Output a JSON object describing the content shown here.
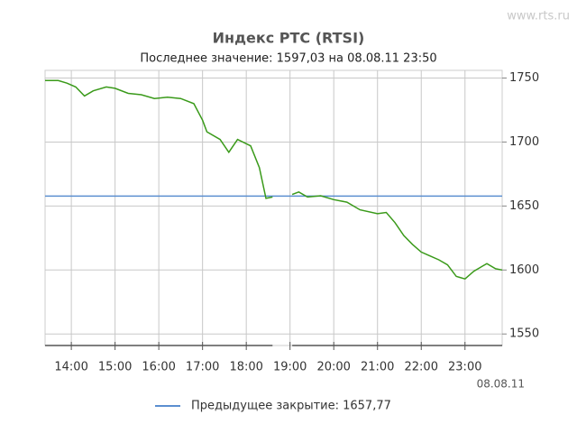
{
  "chart_data": {
    "type": "line",
    "watermark": "www.rts.ru",
    "title": "Индекс РТС (RTSI)",
    "subtitle": "Последнее значение: 1597,03 на 08.08.11 23:50",
    "date_label": "08.08.11",
    "x": [
      13.4,
      13.7,
      13.9,
      14.1,
      14.3,
      14.5,
      14.8,
      15.0,
      15.3,
      15.6,
      15.9,
      16.2,
      16.5,
      16.8,
      17.0,
      17.1,
      17.4,
      17.6,
      17.8,
      18.1,
      18.3,
      18.45,
      18.6,
      18.8,
      19.05,
      19.2,
      19.4,
      19.7,
      20.0,
      20.3,
      20.6,
      21.0,
      21.2,
      21.4,
      21.6,
      21.8,
      22.0,
      22.2,
      22.4,
      22.6,
      22.8,
      23.0,
      23.2,
      23.4,
      23.5,
      23.7,
      23.85
    ],
    "series": [
      {
        "color": "#3a9a1a",
        "values": [
          1748,
          1748,
          1746,
          1743,
          1736,
          1740,
          1743,
          1742,
          1738,
          1737,
          1734,
          1735,
          1734,
          1730,
          1717,
          1708,
          1702,
          1692,
          1702,
          1697,
          1680,
          1656,
          1657,
          null,
          1659,
          1661,
          1657,
          1658,
          1655,
          1653,
          1647,
          1644,
          1645,
          1637,
          1627,
          1620,
          1614,
          1611,
          1608,
          1604,
          1595,
          1593,
          1599,
          1603,
          1605,
          1601,
          1600
        ]
      }
    ],
    "reference_line": {
      "label": "Предыдущее закрытие: 1657,77",
      "value": 1657.77,
      "color": "#5b8fd0"
    },
    "xlim": [
      13.4,
      23.85
    ],
    "xticks": [
      {
        "value": 14,
        "label": "14:00"
      },
      {
        "value": 15,
        "label": "15:00"
      },
      {
        "value": 16,
        "label": "16:00"
      },
      {
        "value": 17,
        "label": "17:00"
      },
      {
        "value": 18,
        "label": "18:00"
      },
      {
        "value": 19,
        "label": "19:00"
      },
      {
        "value": 20,
        "label": "20:00"
      },
      {
        "value": 21,
        "label": "21:00"
      },
      {
        "value": 22,
        "label": "22:00"
      },
      {
        "value": 23,
        "label": "23:00"
      }
    ],
    "ylim": [
      1541,
      1756
    ],
    "yticks": [
      1550,
      1600,
      1650,
      1700,
      1750
    ],
    "grid": true
  }
}
